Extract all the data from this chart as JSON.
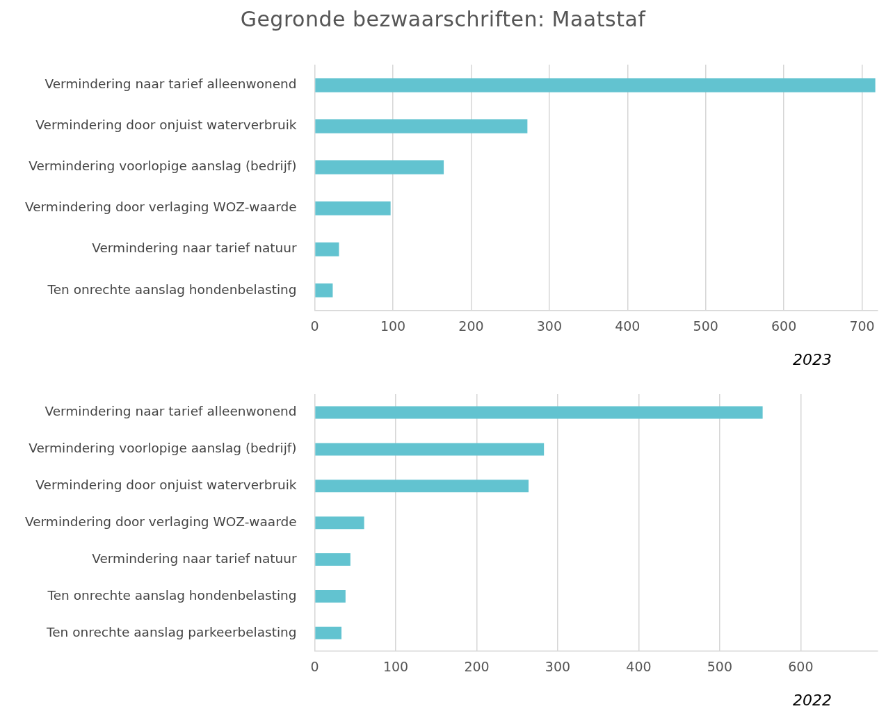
{
  "chart_data": [
    {
      "type": "bar",
      "orientation": "horizontal",
      "title": "Gegronde bezwaarschriften: Maatstaf",
      "categories": [
        "Vermindering naar tarief alleenwonend",
        "Vermindering door onjuist waterverbruik",
        "Vermindering voorlopige aanslag (bedrijf)",
        "Vermindering door verlaging WOZ-waarde",
        "Vermindering naar tarief natuur",
        "Ten onrechte aanslag hondenbelasting"
      ],
      "values": [
        717,
        272,
        165,
        97,
        31,
        23
      ],
      "color": "#62c3d0",
      "xlim": [
        0,
        720
      ],
      "xticks": [
        0,
        100,
        200,
        300,
        400,
        500,
        600,
        700
      ],
      "grid": "x",
      "legend": false,
      "annotations": [
        "2023"
      ]
    },
    {
      "type": "bar",
      "orientation": "horizontal",
      "categories": [
        "Vermindering naar tarief alleenwonend",
        "Vermindering voorlopige aanslag (bedrijf)",
        "Vermindering door onjuist waterverbruik",
        "Vermindering door verlaging WOZ-waarde",
        "Vermindering naar tarief natuur",
        "Ten onrechte aanslag hondenbelasting",
        "Ten onrechte aanslag parkeerbelasting"
      ],
      "values": [
        553,
        283,
        264,
        61,
        44,
        38,
        33
      ],
      "color": "#62c3d0",
      "xlim": [
        0,
        695
      ],
      "xticks": [
        0,
        100,
        200,
        300,
        400,
        500,
        600
      ],
      "grid": "x",
      "legend": false,
      "annotations": [
        "2022"
      ]
    }
  ]
}
